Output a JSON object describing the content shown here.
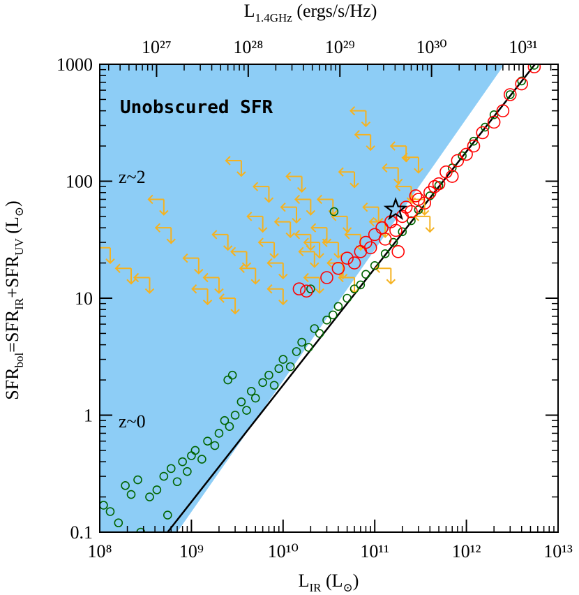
{
  "chart_data": {
    "type": "scatter",
    "xscale": "log",
    "yscale": "log",
    "xlim": [
      100000000.0,
      10000000000000.0
    ],
    "xticks": [
      {
        "value": 100000000.0,
        "label": "10⁸"
      },
      {
        "value": 1000000000.0,
        "label": "10⁹"
      },
      {
        "value": 10000000000.0,
        "label": "10¹⁰"
      },
      {
        "value": 100000000000.0,
        "label": "10¹¹"
      },
      {
        "value": 1000000000000.0,
        "label": "10¹²"
      },
      {
        "value": 10000000000000.0,
        "label": "10¹³"
      }
    ],
    "ylim": [
      0.1,
      1000
    ],
    "yticks": [
      0.1,
      1,
      10,
      100,
      1000
    ],
    "x2lim": [
      2.4e+26,
      2.4e+31
    ],
    "x2ticks": [
      {
        "value": 1e+27,
        "label": "10²⁷"
      },
      {
        "value": 1e+28,
        "label": "10²⁸"
      },
      {
        "value": 1e+29,
        "label": "10²⁹"
      },
      {
        "value": 1e+30,
        "label": "10³⁰"
      },
      {
        "value": 1e+31,
        "label": "10³¹"
      }
    ],
    "xlabel": [
      {
        "text": "L"
      },
      {
        "text": "IR",
        "sub": true
      },
      {
        "text": " (L"
      },
      {
        "text": "⊙",
        "sub": true
      },
      {
        "text": ")"
      }
    ],
    "ylabel": [
      {
        "text": "SFR"
      },
      {
        "text": "bol",
        "sub": true
      },
      {
        "text": "=SFR"
      },
      {
        "text": "IR",
        "sub": true
      },
      {
        "text": "+SFR"
      },
      {
        "text": "UV",
        "sub": true
      },
      {
        "text": "  (L"
      },
      {
        "text": "⊙",
        "sub": true
      },
      {
        "text": ")"
      }
    ],
    "x2label": [
      {
        "text": "L"
      },
      {
        "text": "1.4GHz",
        "sub": true
      },
      {
        "text": " (ergs/s/Hz)"
      }
    ],
    "annotations": [
      {
        "text": "Unobscured SFR",
        "color": "#1515e6"
      },
      {
        "text": "z~2",
        "color": "#ff1a1a"
      },
      {
        "text": "z~0",
        "color": "#006400"
      }
    ],
    "region": {
      "color": "#8dcdf6",
      "x": [
        100000000.0,
        700000000.0,
        2600000000000.0,
        100000000.0
      ],
      "y": [
        0.1,
        0.1,
        1000,
        1000
      ]
    },
    "reference_line": {
      "color": "#000000",
      "x": [
        550000000.0,
        5600000000000.0
      ],
      "y": [
        0.1,
        1000
      ]
    },
    "series": [
      {
        "color": "#f5b220",
        "marker": "upper-limit",
        "x": [
          130000000.0,
          220000000.0,
          350000000.0,
          500000000.0,
          600000000.0,
          1200000000.0,
          1500000000.0,
          2000000000.0,
          2500000000.0,
          3000000000.0,
          3500000000.0,
          4000000000.0,
          5000000000.0,
          6000000000.0,
          7000000000.0,
          8000000000.0,
          10000000000.0,
          12000000000.0,
          14000000000.0,
          16000000000.0,
          20000000000.0,
          22000000000.0,
          25000000000.0,
          30000000000.0,
          35000000000.0,
          40000000000.0,
          45000000000.0,
          50000000000.0,
          60000000000.0,
          70000000000.0,
          80000000000.0,
          90000000000.0,
          110000000000.0,
          130000000000.0,
          180000000000.0,
          220000000000.0,
          250000000000.0,
          300000000000.0,
          350000000000.0,
          150000000000.0,
          400000000000.0,
          60000000000.0,
          25000000000.0,
          10000000000.0,
          20000000000.0
        ],
        "y": [
          27,
          18,
          15,
          70,
          40,
          22,
          12,
          15,
          35,
          10,
          150,
          25,
          18,
          50,
          90,
          30,
          20,
          45,
          60,
          110,
          35,
          25,
          15,
          40,
          70,
          30,
          20,
          50,
          120,
          35,
          400,
          250,
          60,
          45,
          130,
          200,
          90,
          160,
          70,
          18,
          50,
          15,
          30,
          12,
          70
        ]
      },
      {
        "color": "#006400",
        "marker": "circle",
        "x": [
          110000000.0,
          130000000.0,
          160000000.0,
          190000000.0,
          220000000.0,
          260000000.0,
          280000000.0,
          350000000.0,
          420000000.0,
          500000000.0,
          550000000.0,
          600000000.0,
          700000000.0,
          800000000.0,
          900000000.0,
          1000000000.0,
          1100000000.0,
          1300000000.0,
          1500000000.0,
          1800000000.0,
          2000000000.0,
          2300000000.0,
          2600000000.0,
          3000000000.0,
          3500000000.0,
          4000000000.0,
          4500000000.0,
          5000000000.0,
          6000000000.0,
          7000000000.0,
          8000000000.0,
          9000000000.0,
          10000000000.0,
          12000000000.0,
          14000000000.0,
          16000000000.0,
          19000000000.0,
          22000000000.0,
          25000000000.0,
          30000000000.0,
          35000000000.0,
          40000000000.0,
          50000000000.0,
          60000000000.0,
          70000000000.0,
          80000000000.0,
          100000000000.0,
          130000000000.0,
          160000000000.0,
          200000000000.0,
          250000000000.0,
          300000000000.0,
          400000000000.0,
          500000000000.0,
          700000000000.0,
          900000000000.0,
          1200000000000.0,
          1600000000000.0,
          2000000000000.0,
          3000000000000.0,
          4000000000000.0,
          5500000000000.0,
          2500000000.0,
          2800000000.0,
          36000000000.0,
          20000000000.0
        ],
        "y": [
          0.17,
          0.15,
          0.12,
          0.25,
          0.21,
          0.28,
          0.1,
          0.2,
          0.23,
          0.3,
          0.14,
          0.35,
          0.27,
          0.4,
          0.33,
          0.45,
          0.5,
          0.42,
          0.6,
          0.55,
          0.7,
          0.9,
          0.8,
          1.0,
          1.3,
          1.1,
          1.6,
          1.4,
          1.9,
          2.2,
          1.8,
          2.5,
          3.0,
          2.6,
          3.5,
          4.2,
          3.8,
          5.5,
          5.0,
          6.5,
          7.2,
          8.5,
          10,
          12,
          13,
          16,
          19,
          24,
          30,
          37,
          46,
          57,
          75,
          92,
          130,
          165,
          220,
          290,
          370,
          550,
          720,
          980,
          2.0,
          2.2,
          55,
          12
        ]
      },
      {
        "color": "#ff0000",
        "marker": "circle-large",
        "x": [
          15000000000.0,
          18000000000.0,
          30000000000.0,
          40000000000.0,
          50000000000.0,
          60000000000.0,
          70000000000.0,
          80000000000.0,
          90000000000.0,
          100000000000.0,
          120000000000.0,
          130000000000.0,
          150000000000.0,
          170000000000.0,
          200000000000.0,
          220000000000.0,
          250000000000.0,
          300000000000.0,
          350000000000.0,
          400000000000.0,
          500000000000.0,
          600000000000.0,
          700000000000.0,
          800000000000.0,
          1000000000000.0,
          1200000000000.0,
          1500000000000.0,
          2000000000000.0,
          2500000000000.0,
          3000000000000.0,
          4000000000000.0,
          5500000000000.0,
          180000000000.0,
          280000000000.0,
          450000000000.0
        ],
        "y": [
          12,
          11.5,
          15,
          18,
          22,
          20,
          25,
          30,
          27,
          35,
          40,
          32,
          45,
          38,
          50,
          60,
          55,
          70,
          65,
          80,
          95,
          120,
          110,
          150,
          170,
          200,
          260,
          320,
          400,
          550,
          680,
          950,
          25,
          75,
          90
        ]
      },
      {
        "color": "#000000",
        "marker": "star",
        "x": [
          169000000000.0
        ],
        "y": [
          57
        ]
      }
    ]
  }
}
